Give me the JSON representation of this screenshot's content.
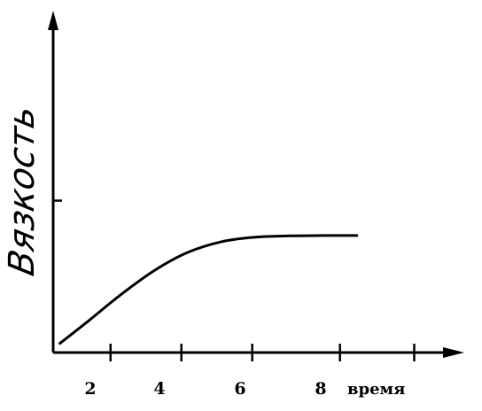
{
  "chart_data": {
    "type": "line",
    "title": "",
    "xlabel": "время",
    "ylabel": "Вязкость",
    "grid": false,
    "legend": "none",
    "x_tick_labels": [
      "2",
      "4",
      "6",
      "8"
    ],
    "x_ticks": [
      1.7,
      3.8,
      5.9,
      8.5,
      10.7
    ],
    "xlim": [
      0,
      12
    ],
    "y_ticks": [
      0.5
    ],
    "ylim": [
      0,
      1
    ],
    "series": [
      {
        "color": "#000000",
        "x": [
          0.2,
          1.0,
          2.0,
          3.0,
          4.0,
          5.0,
          6.0,
          7.0,
          8.0,
          9.0
        ],
        "y": [
          0.03,
          0.1,
          0.19,
          0.27,
          0.33,
          0.365,
          0.38,
          0.384,
          0.385,
          0.385
        ]
      }
    ]
  }
}
